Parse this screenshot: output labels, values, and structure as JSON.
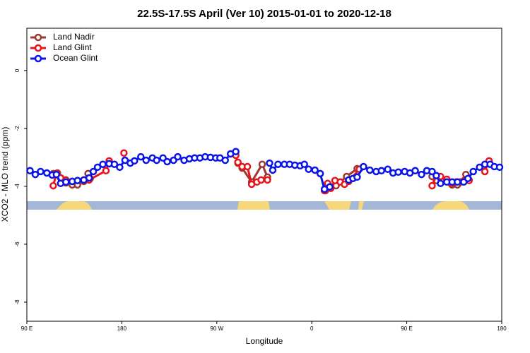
{
  "chart_data": {
    "type": "line",
    "title": "22.5S-17.5S April (Ver 10)   2015-01-01 to 2020-12-18",
    "xlabel": "Longitude",
    "ylabel": "XCO2 - MLO trend (ppm)",
    "xlim": [
      90,
      540
    ],
    "ylim": [
      -8.66,
      1.46
    ],
    "xticks": [
      {
        "value": 90,
        "label": "90 E"
      },
      {
        "value": 180,
        "label": "180"
      },
      {
        "value": 270,
        "label": "90 W"
      },
      {
        "value": 360,
        "label": "0"
      },
      {
        "value": 450,
        "label": "90 E"
      },
      {
        "value": 540,
        "label": "180"
      }
    ],
    "yticks": [
      0,
      -2,
      -4,
      -6,
      -8
    ],
    "legend": "top-left",
    "series": [
      {
        "name": "Land Nadir",
        "color": "#9b3a32",
        "x": [
          115,
          119,
          127,
          133,
          138,
          144,
          148,
          150,
          200,
          290,
          294,
          303,
          313,
          318,
          345,
          373,
          378,
          383,
          393,
          403,
          440,
          474,
          478,
          483,
          488,
          493,
          498,
          501,
          506,
          509
        ],
        "values": [
          -3.56,
          -3.54,
          -3.88,
          -3.95,
          -3.95,
          -3.83,
          -3.56,
          -3.73,
          null,
          -3.2,
          -3.37,
          -3.85,
          -3.24,
          -3.68,
          null,
          -4.15,
          -4.02,
          -3.98,
          -3.66,
          -3.39,
          null,
          -3.66,
          -3.8,
          -3.83,
          -3.83,
          -3.95,
          -3.95,
          -3.85,
          -3.59,
          -3.78
        ]
      },
      {
        "name": "Land Glint",
        "color": "#e8141c",
        "x": [
          115,
          118,
          122,
          127,
          133,
          138,
          144,
          149,
          165,
          168,
          175,
          182,
          186,
          288,
          290,
          294,
          299,
          303,
          308,
          312,
          318,
          345,
          372,
          375,
          378,
          382,
          387,
          391,
          395,
          405,
          440,
          474,
          478,
          482,
          488,
          492,
          497,
          501,
          505,
          509,
          515,
          524,
          528
        ],
        "values": [
          -3.98,
          -3.56,
          -3.71,
          -3.78,
          -3.83,
          -3.8,
          -3.78,
          -3.78,
          -3.46,
          -3.12,
          null,
          -2.85,
          null,
          -2.93,
          -3.17,
          -3.32,
          -3.32,
          -3.93,
          -3.85,
          -3.78,
          -3.78,
          null,
          -4.15,
          -3.9,
          -4.07,
          -3.8,
          -3.85,
          -3.93,
          -3.83,
          -3.41,
          null,
          -3.98,
          -3.63,
          -3.66,
          -3.76,
          -3.9,
          -3.85,
          -3.85,
          -3.78,
          -3.8,
          null,
          -3.49,
          -3.12
        ]
      },
      {
        "name": "Ocean Glint",
        "color": "#0a14e6",
        "x": [
          93,
          98,
          103,
          109,
          114,
          118,
          122,
          127,
          133,
          138,
          144,
          149,
          153,
          157,
          162,
          168,
          173,
          178,
          183,
          188,
          192,
          198,
          203,
          209,
          213,
          219,
          223,
          229,
          233,
          239,
          244,
          249,
          254,
          259,
          264,
          269,
          273,
          278,
          283,
          288,
          300,
          320,
          323,
          328,
          334,
          339,
          344,
          349,
          353,
          357,
          363,
          368,
          372,
          377,
          386,
          395,
          399,
          403,
          409,
          415,
          421,
          426,
          432,
          437,
          442,
          448,
          453,
          458,
          464,
          469,
          474,
          478,
          482,
          488,
          493,
          498,
          504,
          508,
          513,
          519,
          524,
          529,
          533,
          538
        ],
        "values": [
          -3.46,
          -3.59,
          -3.49,
          -3.54,
          -3.61,
          -3.59,
          -3.9,
          -3.85,
          -3.83,
          -3.8,
          -3.78,
          -3.71,
          -3.49,
          -3.34,
          -3.24,
          -3.22,
          -3.24,
          -3.34,
          -3.1,
          -3.2,
          -3.12,
          -2.98,
          -3.1,
          -3.02,
          -3.1,
          -3.02,
          -3.15,
          -3.1,
          -2.98,
          -3.1,
          -3.05,
          -3.02,
          -3.02,
          -2.98,
          -3.0,
          -3.02,
          -3.02,
          -3.1,
          -2.88,
          -2.8,
          null,
          -3.2,
          -3.44,
          -3.24,
          -3.24,
          -3.24,
          -3.27,
          -3.29,
          -3.24,
          -3.41,
          -3.44,
          -3.56,
          -4.1,
          -4.02,
          null,
          -3.78,
          -3.73,
          -3.68,
          -3.32,
          -3.44,
          -3.49,
          -3.46,
          -3.41,
          -3.54,
          -3.51,
          -3.49,
          -3.54,
          -3.46,
          -3.59,
          -3.46,
          -3.49,
          -3.63,
          -3.9,
          -3.85,
          -3.85,
          -3.85,
          -3.85,
          -3.73,
          -3.49,
          -3.34,
          -3.24,
          -3.24,
          -3.32,
          -3.34
        ]
      }
    ]
  }
}
